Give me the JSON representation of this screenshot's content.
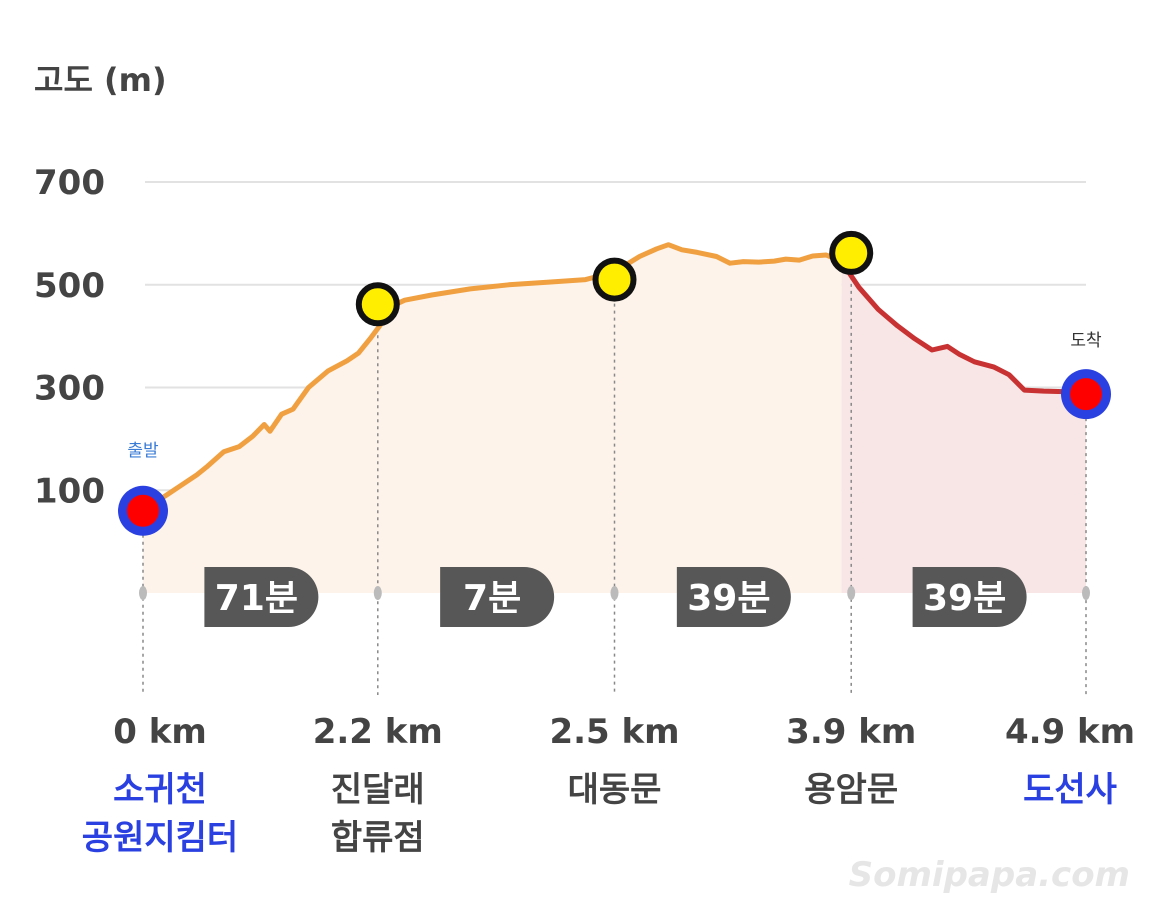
{
  "chart_data": {
    "type": "area",
    "ylabel": "고도 (m)",
    "yticks": [
      100,
      300,
      500,
      700
    ],
    "ylim": [
      -100,
      700
    ],
    "xlim": [
      0,
      4.9
    ],
    "grid": true,
    "elevation_profile": [
      [
        0.0,
        60
      ],
      [
        0.08,
        80
      ],
      [
        0.18,
        105
      ],
      [
        0.28,
        130
      ],
      [
        0.33,
        145
      ],
      [
        0.42,
        175
      ],
      [
        0.5,
        185
      ],
      [
        0.57,
        205
      ],
      [
        0.63,
        228
      ],
      [
        0.66,
        215
      ],
      [
        0.72,
        248
      ],
      [
        0.78,
        258
      ],
      [
        0.86,
        300
      ],
      [
        0.96,
        332
      ],
      [
        1.06,
        352
      ],
      [
        1.12,
        367
      ],
      [
        1.18,
        395
      ],
      [
        1.24,
        425
      ],
      [
        1.29,
        458
      ],
      [
        1.36,
        470
      ],
      [
        1.5,
        480
      ],
      [
        1.7,
        492
      ],
      [
        1.9,
        500
      ],
      [
        2.1,
        505
      ],
      [
        2.3,
        510
      ],
      [
        2.38,
        518
      ],
      [
        2.48,
        532
      ],
      [
        2.58,
        555
      ],
      [
        2.67,
        570
      ],
      [
        2.73,
        578
      ],
      [
        2.8,
        568
      ],
      [
        2.88,
        563
      ],
      [
        2.98,
        555
      ],
      [
        3.05,
        542
      ],
      [
        3.12,
        545
      ],
      [
        3.2,
        544
      ],
      [
        3.28,
        546
      ],
      [
        3.34,
        550
      ],
      [
        3.41,
        548
      ],
      [
        3.48,
        556
      ],
      [
        3.55,
        558
      ],
      [
        3.63,
        545
      ],
      [
        3.72,
        495
      ],
      [
        3.82,
        452
      ],
      [
        3.92,
        420
      ],
      [
        4.01,
        395
      ],
      [
        4.1,
        373
      ],
      [
        4.18,
        380
      ],
      [
        4.24,
        365
      ],
      [
        4.32,
        350
      ],
      [
        4.42,
        340
      ],
      [
        4.5,
        325
      ],
      [
        4.58,
        295
      ],
      [
        4.68,
        293
      ],
      [
        4.78,
        292
      ],
      [
        4.9,
        287
      ]
    ],
    "waypoints": [
      {
        "x": 0.0,
        "y": 60,
        "distance": "0 km",
        "name_lines": [
          "소귀천",
          "공원지킴터"
        ],
        "kind": "start",
        "tag": "출발"
      },
      {
        "x": 1.22,
        "y": 462,
        "distance": "2.2 km",
        "name_lines": [
          "진달래",
          "합류점"
        ],
        "kind": "mid"
      },
      {
        "x": 2.45,
        "y": 510,
        "distance": "2.5 km",
        "name_lines": [
          "대동문"
        ],
        "kind": "mid"
      },
      {
        "x": 3.68,
        "y": 562,
        "distance": "3.9 km",
        "name_lines": [
          "용암문"
        ],
        "kind": "mid"
      },
      {
        "x": 4.9,
        "y": 287,
        "distance": "4.9 km",
        "name_lines": [
          "도선사"
        ],
        "kind": "end",
        "tag": "도착"
      }
    ],
    "segment_times": [
      "71분",
      "7분",
      "39분",
      "39분"
    ],
    "colors": {
      "ascent_line": "#f0a040",
      "descent_line": "#c83232",
      "ascent_fill": "#fdf3ea",
      "descent_fill": "#f8e6e6",
      "grid": "#e2e2e2",
      "endpoint_ring": "#2a40e0",
      "endpoint_dot": "#ff0000",
      "waypoint_dot": "#ffee00",
      "badge": "#575757",
      "endpoint_label": "#2a40e0",
      "label_text": "#444444"
    }
  },
  "watermark": "Somipapa.com"
}
